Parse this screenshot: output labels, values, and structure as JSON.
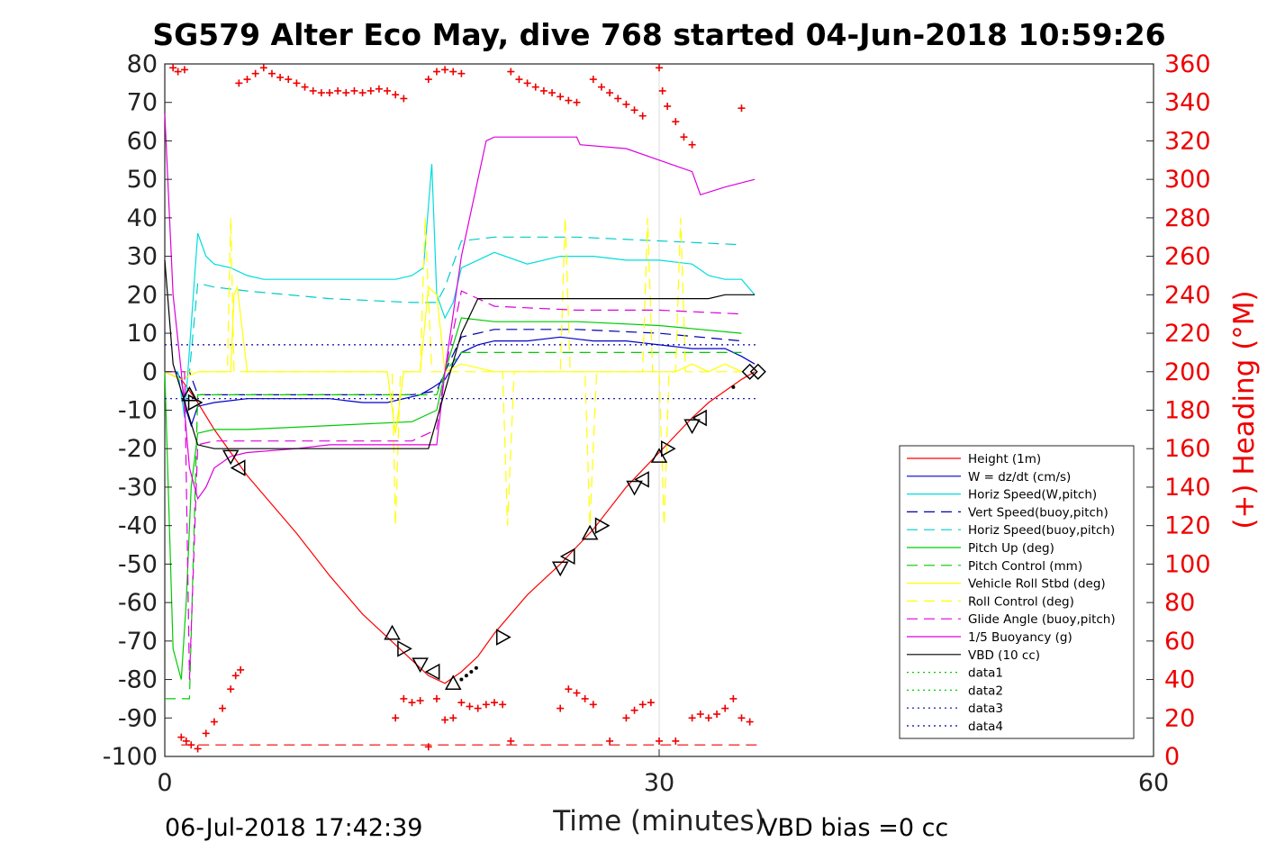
{
  "chart_data": {
    "type": "line",
    "title": "SG579 Alter Eco May, dive 768 started 04-Jun-2018 10:59:26",
    "xlabel": "Time (minutes)",
    "ylabel": "",
    "y2label": "(+) Heading (°M)",
    "xlim": [
      0,
      60
    ],
    "ylim": [
      -100,
      80
    ],
    "y2lim": [
      0,
      360
    ],
    "xticks": [
      "0",
      "30",
      "60"
    ],
    "yticks": [
      "80",
      "70",
      "60",
      "50",
      "40",
      "30",
      "20",
      "10",
      "0",
      "-10",
      "-20",
      "-30",
      "-40",
      "-50",
      "-60",
      "-70",
      "-80",
      "-90",
      "-100"
    ],
    "y2ticks": [
      "360",
      "340",
      "320",
      "300",
      "280",
      "260",
      "240",
      "220",
      "200",
      "180",
      "160",
      "140",
      "120",
      "100",
      "80",
      "60",
      "40",
      "20",
      "0"
    ],
    "grid": "x",
    "legend_position": "lower-right",
    "footer_left": "06-Jul-2018 17:42:39",
    "footer_right": "VBD bias =0 cc",
    "series": [
      {
        "name": "Height (1m)",
        "color": "#ff0000",
        "style": "solid",
        "x": [
          0,
          1.0,
          2.0,
          3.0,
          4.0,
          5.0,
          8.0,
          10.0,
          12.0,
          14.0,
          15.0,
          16.0,
          17.0,
          18.0,
          19.0,
          20.0,
          21.0,
          22.0,
          24.0,
          26.0,
          28.0,
          30.0,
          32.0,
          33.0,
          34.0,
          35.0,
          35.8
        ],
        "y": [
          0,
          -2,
          -8,
          -15,
          -21,
          -27,
          -42,
          -53,
          -63,
          -71,
          -75,
          -79,
          -81,
          -78,
          -74,
          -68,
          -63,
          -58,
          -50,
          -41,
          -30,
          -21,
          -12,
          -8,
          -5,
          -2,
          0
        ]
      },
      {
        "name": "W = dz/dt (cm/s)",
        "color": "#0000cc",
        "style": "solid",
        "x": [
          0,
          0.7,
          1.0,
          1.3,
          1.6,
          2.0,
          3.0,
          5.0,
          8.0,
          10.0,
          12.0,
          13.5,
          14.5,
          15.5,
          16.3,
          17.0,
          18.0,
          19.0,
          20.0,
          22.0,
          24.0,
          26.0,
          28.0,
          30.0,
          32.0,
          34.0,
          35.0,
          35.8
        ],
        "y": [
          0,
          0,
          -2,
          -10,
          -14,
          -9,
          -8,
          -7,
          -7,
          -7,
          -8,
          -8,
          -7,
          -6,
          -4,
          -2,
          5,
          7,
          8,
          8,
          9,
          8,
          8,
          7,
          6,
          6,
          4,
          2
        ]
      },
      {
        "name": "Horiz Speed(W,pitch)",
        "color": "#00dddd",
        "style": "solid",
        "x": [
          0,
          0.8,
          1.2,
          1.6,
          2.0,
          2.5,
          3.0,
          4.0,
          5.0,
          6.0,
          8.0,
          10.0,
          12.0,
          14.0,
          15.0,
          15.7,
          16.2,
          16.5,
          17.0,
          17.5,
          18.0,
          19.0,
          20.0,
          22.0,
          24.0,
          26.0,
          28.0,
          30.0,
          32.0,
          33.0,
          34.0,
          35.0,
          35.8
        ],
        "y": [
          0,
          0,
          -12,
          12,
          36,
          30,
          28,
          27,
          25,
          24,
          24,
          24,
          24,
          24,
          25,
          27,
          54,
          20,
          14,
          18,
          27,
          29,
          31,
          28,
          30,
          30,
          29,
          29,
          28,
          25,
          24,
          24,
          20
        ]
      },
      {
        "name": "Vert Speed(buoy,pitch)",
        "color": "#0000aa",
        "style": "dashed",
        "x": [
          0,
          1.5,
          2.0,
          5.0,
          10.0,
          15.0,
          16.5,
          17.0,
          18.0,
          20.0,
          25.0,
          30.0,
          35.0
        ],
        "y": [
          0,
          0,
          -6,
          -6,
          -6,
          -6,
          -5,
          0,
          9,
          11,
          11,
          10,
          8
        ]
      },
      {
        "name": "Horiz Speed(buoy,pitch)",
        "color": "#00cccc",
        "style": "dashed",
        "x": [
          0,
          1.5,
          2.0,
          3.0,
          5.0,
          10.0,
          15.0,
          16.5,
          17.0,
          18.0,
          20.0,
          25.0,
          30.0,
          35.0
        ],
        "y": [
          0,
          0,
          23,
          22,
          21,
          19,
          18,
          18,
          22,
          34,
          35,
          35,
          34,
          33
        ]
      },
      {
        "name": "Pitch Up (deg)",
        "color": "#00cc00",
        "style": "solid",
        "x": [
          0,
          0.5,
          1.0,
          1.3,
          1.6,
          2.0,
          3.0,
          5.0,
          10.0,
          15.0,
          16.5,
          17.0,
          18.0,
          20.0,
          25.0,
          30.0,
          35.0
        ],
        "y": [
          0,
          -72,
          -80,
          -60,
          -30,
          -16,
          -15,
          -15,
          -14,
          -13,
          -10,
          0,
          14,
          13,
          13,
          12,
          10
        ]
      },
      {
        "name": "Pitch Control (mm)",
        "color": "#00cc00",
        "style": "dashed",
        "x": [
          0,
          1.5,
          2.0,
          10.0,
          16.5,
          17.0,
          18.0,
          25.0,
          30.0,
          35.0
        ],
        "y": [
          -85,
          -85,
          -6,
          -6,
          -6,
          0,
          5,
          5,
          5,
          5
        ]
      },
      {
        "name": "Vehicle Roll Stbd (deg)",
        "color": "#ffff00",
        "style": "solid",
        "x": [
          0,
          1.0,
          2.0,
          3.0,
          4.0,
          4.2,
          4.4,
          5.0,
          8.0,
          13.5,
          14.0,
          14.5,
          15.5,
          16.0,
          16.5,
          17.0,
          18.0,
          20.0,
          22.0,
          25.0,
          28.0,
          30.0,
          31.0,
          32.0,
          33.0,
          34.0,
          35.0
        ],
        "y": [
          0,
          -2,
          0,
          0,
          0,
          20,
          22,
          0,
          0,
          0,
          -16,
          0,
          0,
          22,
          20,
          0,
          2,
          0,
          0,
          0,
          0,
          0,
          0,
          2,
          0,
          2,
          0
        ]
      },
      {
        "name": "Roll Control (deg)",
        "color": "#ffff00",
        "style": "dashed",
        "x": [
          0,
          3.8,
          4.0,
          4.2,
          5.0,
          13.8,
          14.0,
          14.3,
          15.5,
          15.8,
          16.2,
          20.5,
          20.8,
          21.2,
          24.0,
          24.3,
          24.6,
          25.5,
          25.8,
          26.2,
          29.0,
          29.3,
          29.6,
          30.0,
          30.3,
          30.6,
          31.0,
          31.3,
          31.6,
          35.0
        ],
        "y": [
          0,
          0,
          40,
          0,
          0,
          0,
          -40,
          0,
          0,
          40,
          0,
          0,
          -40,
          0,
          0,
          40,
          0,
          0,
          -40,
          0,
          0,
          40,
          0,
          0,
          -40,
          0,
          0,
          40,
          0,
          0
        ]
      },
      {
        "name": "Glide Angle (buoy,pitch)",
        "color": "#dd00dd",
        "style": "dashed",
        "x": [
          0,
          1.2,
          1.5,
          2.0,
          3.0,
          5.0,
          10.0,
          15.0,
          16.5,
          17.0,
          18.0,
          20.0,
          25.0,
          30.0,
          35.0
        ],
        "y": [
          0,
          0,
          -80,
          -19,
          -18,
          -18,
          -18,
          -18,
          -15,
          0,
          21,
          17,
          16,
          16,
          15
        ]
      },
      {
        "name": "1/5 Buoyancy (g)",
        "color": "#dd00dd",
        "style": "solid",
        "x": [
          0,
          0.5,
          1.0,
          1.5,
          2.0,
          2.5,
          3.0,
          4.0,
          5.0,
          8.0,
          10.0,
          12.0,
          14.0,
          15.0,
          16.0,
          16.5,
          17.0,
          18.0,
          19.5,
          20.0,
          25.0,
          25.2,
          28.0,
          30.0,
          32.0,
          32.5,
          34.0,
          35.8
        ],
        "y": [
          67,
          20,
          0,
          -25,
          -33,
          -30,
          -25,
          -22,
          -21,
          -20,
          -19,
          -19,
          -19,
          -19,
          -19,
          -19,
          0,
          30,
          60,
          61,
          61,
          59,
          58,
          55,
          52,
          46,
          48,
          50
        ]
      },
      {
        "name": "VBD (10 cc)",
        "color": "#000000",
        "style": "solid",
        "x": [
          0,
          0.5,
          1.0,
          1.5,
          2.0,
          3.0,
          5.0,
          10.0,
          15.0,
          16.0,
          17.0,
          18.0,
          19.0,
          20.0,
          25.0,
          30.0,
          33.0,
          34.0,
          35.8
        ],
        "y": [
          29,
          2,
          -5,
          -12,
          -19,
          -20,
          -20,
          -20,
          -20,
          -20,
          -5,
          10,
          19,
          19,
          19,
          19,
          19,
          20,
          20
        ]
      },
      {
        "name": "data1",
        "color": "#00cc00",
        "style": "dotted",
        "x": [],
        "y": []
      },
      {
        "name": "data2",
        "color": "#00cc00",
        "style": "dotted",
        "x": [],
        "y": []
      },
      {
        "name": "data3",
        "color": "#0000aa",
        "style": "dotted",
        "x": [
          0,
          36
        ],
        "y": [
          7,
          7
        ]
      },
      {
        "name": "data4",
        "color": "#0000aa",
        "style": "dotted",
        "x": [
          0,
          36
        ],
        "y": [
          -7,
          -7
        ]
      }
    ],
    "markers": {
      "triangles": [
        [
          1.5,
          -6
        ],
        [
          1.8,
          -8
        ],
        [
          4.0,
          -22
        ],
        [
          4.5,
          -25
        ],
        [
          13.8,
          -68
        ],
        [
          14.5,
          -72
        ],
        [
          15.5,
          -76
        ],
        [
          16.3,
          -78
        ],
        [
          17.5,
          -81
        ],
        [
          20.5,
          -69
        ],
        [
          24.0,
          -51
        ],
        [
          24.5,
          -48
        ],
        [
          25.8,
          -42
        ],
        [
          26.5,
          -40
        ],
        [
          28.5,
          -30
        ],
        [
          29.0,
          -28
        ],
        [
          30.0,
          -22
        ],
        [
          30.5,
          -20
        ],
        [
          32.0,
          -14
        ],
        [
          32.5,
          -12
        ]
      ],
      "diamonds": [
        [
          35.5,
          0
        ],
        [
          36.0,
          0
        ]
      ],
      "dots": [
        [
          18.0,
          -80
        ],
        [
          18.3,
          -79
        ],
        [
          18.6,
          -78
        ],
        [
          18.9,
          -77
        ],
        [
          34.5,
          -4
        ]
      ]
    },
    "heading_points": {
      "x": [
        0.5,
        0.8,
        1.2,
        4.5,
        5.0,
        5.5,
        6.0,
        6.5,
        7.0,
        7.5,
        8.0,
        8.5,
        9.0,
        9.5,
        10.0,
        10.5,
        11.0,
        11.5,
        12.0,
        12.5,
        13.0,
        13.5,
        14.0,
        14.5,
        16.0,
        16.5,
        17.0,
        17.5,
        18.0,
        21.0,
        21.5,
        22.0,
        22.5,
        23.0,
        23.5,
        24.0,
        24.5,
        25.0,
        26.0,
        26.5,
        27.0,
        27.5,
        28.0,
        28.5,
        29.0,
        30.0,
        30.2,
        30.5,
        31.0,
        31.5,
        32.0,
        35.0,
        1.0,
        1.3,
        1.6,
        2.0,
        2.5,
        3.0,
        3.5,
        4.0,
        4.3,
        4.6,
        14.0,
        14.5,
        15.0,
        15.5,
        16.0,
        16.5,
        17.0,
        17.5,
        18.0,
        18.5,
        19.0,
        19.5,
        20.0,
        20.5,
        21.0,
        24.0,
        24.5,
        25.0,
        25.5,
        26.0,
        27.0,
        28.0,
        28.5,
        29.0,
        29.5,
        30.0,
        31.0,
        32.0,
        32.5,
        33.0,
        33.5,
        34.0,
        34.5,
        35.0,
        35.5
      ],
      "y": [
        358,
        356,
        357,
        350,
        352,
        355,
        358,
        355,
        353,
        352,
        350,
        348,
        346,
        345,
        345,
        346,
        345,
        346,
        345,
        346,
        347,
        346,
        344,
        342,
        352,
        356,
        357,
        356,
        355,
        356,
        352,
        350,
        348,
        346,
        345,
        343,
        341,
        340,
        352,
        348,
        345,
        342,
        339,
        336,
        333,
        358,
        346,
        338,
        330,
        322,
        318,
        337,
        10,
        8,
        6,
        4,
        12,
        18,
        25,
        35,
        42,
        45,
        20,
        30,
        28,
        29,
        5,
        30,
        19,
        20,
        28,
        26,
        25,
        27,
        28,
        27,
        8,
        25,
        35,
        33,
        30,
        27,
        8,
        20,
        24,
        27,
        28,
        8,
        8,
        20,
        22,
        20,
        22,
        25,
        30,
        20,
        18
      ]
    }
  }
}
